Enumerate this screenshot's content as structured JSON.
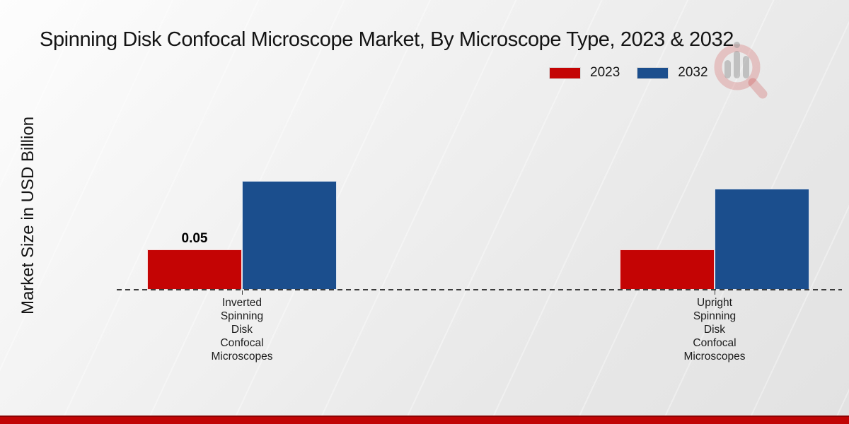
{
  "title": "Spinning Disk Confocal Microscope Market, By Microscope Type, 2023 & 2032",
  "y_axis_label": "Market Size in USD Billion",
  "legend": [
    {
      "label": "2023",
      "color": "#c40404"
    },
    {
      "label": "2032",
      "color": "#1b4e8d"
    }
  ],
  "accent_bar_color": "#c10505",
  "brand_watermark_icon": "magnifier-bar-chart-icon",
  "chart_data": {
    "type": "bar",
    "title": "Spinning Disk Confocal Microscope Market, By Microscope Type, 2023 & 2032",
    "xlabel": "",
    "ylabel": "Market Size in USD Billion",
    "categories": [
      "Inverted Spinning Disk Confocal Microscopes",
      "Upright Spinning Disk Confocal Microscopes"
    ],
    "categories_lines": [
      [
        "Inverted",
        "Spinning",
        "Disk",
        "Confocal",
        "Microscopes"
      ],
      [
        "Upright",
        "Spinning",
        "Disk",
        "Confocal",
        "Microscopes"
      ]
    ],
    "series": [
      {
        "name": "2023",
        "color": "#c40404",
        "values": [
          0.05,
          0.05
        ]
      },
      {
        "name": "2032",
        "color": "#1b4e8d",
        "values": [
          0.135,
          0.125
        ]
      }
    ],
    "data_labels": [
      {
        "series_index": 0,
        "category_index": 0,
        "text": "0.05"
      }
    ],
    "ylim": [
      0,
      0.16
    ],
    "grid": false,
    "legend_position": "top-right",
    "baseline_style": "dashed"
  }
}
